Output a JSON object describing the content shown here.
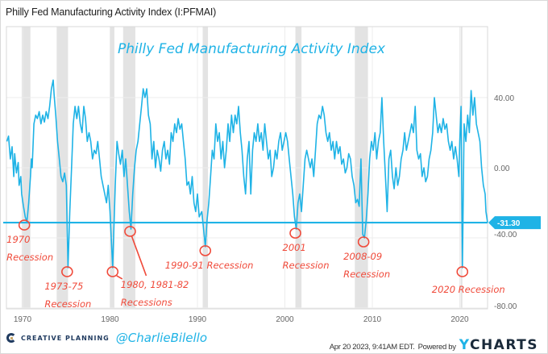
{
  "header": {
    "title": "Philly Fed Manufacturing Activity Index (I:PFMAI)"
  },
  "footer": {
    "brand": "CREATIVE PLANNING",
    "handle": "@CharlieBilello",
    "timestamp": "Apr 20 2023, 9:41AM EDT.",
    "powered_by": "Powered by",
    "ycharts_y": "Y",
    "ycharts_rest": "CHARTS"
  },
  "colors": {
    "series": "#1fb3e6",
    "annotation": "#f04a3a",
    "recession_band": "#e3e3e3",
    "grid": "#ececec"
  },
  "chart_data": {
    "type": "line",
    "title": "Philly Fed Manufacturing Activity Index",
    "xlabel": "",
    "ylabel": "",
    "xlim": [
      1968.2,
      2023.3
    ],
    "ylim": [
      -80,
      60
    ],
    "grid": true,
    "y_ticks": [
      {
        "value": 40,
        "label": "40.00"
      },
      {
        "value": 0,
        "label": "0.00"
      },
      {
        "value": -40,
        "label": "-40.00"
      },
      {
        "value": -80,
        "label": "-80.00"
      }
    ],
    "x_ticks": [
      {
        "value": 1970,
        "label": "1970"
      },
      {
        "value": 1980,
        "label": "1980"
      },
      {
        "value": 1990,
        "label": "1990"
      },
      {
        "value": 2000,
        "label": "2000"
      },
      {
        "value": 2010,
        "label": "2010"
      },
      {
        "value": 2020,
        "label": "2020"
      }
    ],
    "last_value": {
      "value": -31.3,
      "label": "-31.30"
    },
    "reference_line": -31.3,
    "recessions": [
      {
        "start": 1969.9,
        "end": 1970.9
      },
      {
        "start": 1973.9,
        "end": 1975.2
      },
      {
        "start": 1980.0,
        "end": 1980.5
      },
      {
        "start": 1981.5,
        "end": 1982.9
      },
      {
        "start": 1990.6,
        "end": 1991.2
      },
      {
        "start": 2001.2,
        "end": 2001.9
      },
      {
        "start": 2008.0,
        "end": 2009.5
      },
      {
        "start": 2020.1,
        "end": 2020.3
      }
    ],
    "series": [
      {
        "name": "Philly Fed Manufacturing Activity Index",
        "points": [
          [
            1968.2,
            15
          ],
          [
            1968.4,
            18
          ],
          [
            1968.6,
            5
          ],
          [
            1968.8,
            12
          ],
          [
            1969.0,
            -5
          ],
          [
            1969.1,
            8
          ],
          [
            1969.3,
            -3
          ],
          [
            1969.5,
            3
          ],
          [
            1969.6,
            -10
          ],
          [
            1969.8,
            -5
          ],
          [
            1969.9,
            -15
          ],
          [
            1970.1,
            -22
          ],
          [
            1970.3,
            -28
          ],
          [
            1970.5,
            -31
          ],
          [
            1970.7,
            -20
          ],
          [
            1970.9,
            -5
          ],
          [
            1971.0,
            5
          ],
          [
            1971.1,
            0
          ],
          [
            1971.3,
            25
          ],
          [
            1971.5,
            30
          ],
          [
            1971.7,
            28
          ],
          [
            1971.9,
            32
          ],
          [
            1972.1,
            25
          ],
          [
            1972.3,
            30
          ],
          [
            1972.5,
            26
          ],
          [
            1972.7,
            32
          ],
          [
            1972.9,
            28
          ],
          [
            1973.1,
            35
          ],
          [
            1973.3,
            45
          ],
          [
            1973.5,
            50
          ],
          [
            1973.6,
            42
          ],
          [
            1973.8,
            30
          ],
          [
            1974.0,
            15
          ],
          [
            1974.2,
            5
          ],
          [
            1974.4,
            -5
          ],
          [
            1974.6,
            -8
          ],
          [
            1974.8,
            -3
          ],
          [
            1975.0,
            -10
          ],
          [
            1975.2,
            -57
          ],
          [
            1975.4,
            -25
          ],
          [
            1975.6,
            0
          ],
          [
            1975.8,
            25
          ],
          [
            1976.0,
            35
          ],
          [
            1976.2,
            28
          ],
          [
            1976.4,
            35
          ],
          [
            1976.6,
            25
          ],
          [
            1976.8,
            20
          ],
          [
            1977.0,
            35
          ],
          [
            1977.2,
            28
          ],
          [
            1977.4,
            15
          ],
          [
            1977.6,
            20
          ],
          [
            1977.8,
            15
          ],
          [
            1978.0,
            5
          ],
          [
            1978.2,
            10
          ],
          [
            1978.4,
            8
          ],
          [
            1978.6,
            15
          ],
          [
            1978.8,
            5
          ],
          [
            1979.0,
            -5
          ],
          [
            1979.2,
            -10
          ],
          [
            1979.4,
            -15
          ],
          [
            1979.6,
            -20
          ],
          [
            1979.8,
            -10
          ],
          [
            1980.0,
            -25
          ],
          [
            1980.3,
            -57
          ],
          [
            1980.6,
            -10
          ],
          [
            1980.8,
            15
          ],
          [
            1981.0,
            8
          ],
          [
            1981.2,
            2
          ],
          [
            1981.4,
            10
          ],
          [
            1981.6,
            -5
          ],
          [
            1981.8,
            5
          ],
          [
            1982.0,
            -10
          ],
          [
            1982.2,
            -25
          ],
          [
            1982.4,
            -35
          ],
          [
            1982.6,
            -15
          ],
          [
            1982.8,
            0
          ],
          [
            1983.0,
            10
          ],
          [
            1983.2,
            15
          ],
          [
            1983.4,
            25
          ],
          [
            1983.6,
            35
          ],
          [
            1983.8,
            45
          ],
          [
            1984.0,
            40
          ],
          [
            1984.2,
            45
          ],
          [
            1984.4,
            30
          ],
          [
            1984.6,
            25
          ],
          [
            1984.8,
            5
          ],
          [
            1985.0,
            15
          ],
          [
            1985.2,
            0
          ],
          [
            1985.4,
            10
          ],
          [
            1985.6,
            5
          ],
          [
            1985.8,
            -2
          ],
          [
            1986.0,
            10
          ],
          [
            1986.2,
            15
          ],
          [
            1986.4,
            5
          ],
          [
            1986.6,
            10
          ],
          [
            1986.8,
            2
          ],
          [
            1987.0,
            20
          ],
          [
            1987.2,
            15
          ],
          [
            1987.4,
            25
          ],
          [
            1987.6,
            20
          ],
          [
            1987.8,
            28
          ],
          [
            1988.0,
            22
          ],
          [
            1988.2,
            25
          ],
          [
            1988.4,
            15
          ],
          [
            1988.6,
            5
          ],
          [
            1988.8,
            -10
          ],
          [
            1989.0,
            -8
          ],
          [
            1989.2,
            -15
          ],
          [
            1989.4,
            -5
          ],
          [
            1989.6,
            -20
          ],
          [
            1989.8,
            -25
          ],
          [
            1990.0,
            -15
          ],
          [
            1990.2,
            -28
          ],
          [
            1990.5,
            -25
          ],
          [
            1990.7,
            -35
          ],
          [
            1990.9,
            -45
          ],
          [
            1991.1,
            -30
          ],
          [
            1991.3,
            -20
          ],
          [
            1991.5,
            -5
          ],
          [
            1991.7,
            10
          ],
          [
            1991.9,
            5
          ],
          [
            1992.1,
            25
          ],
          [
            1992.3,
            15
          ],
          [
            1992.5,
            20
          ],
          [
            1992.7,
            5
          ],
          [
            1992.9,
            15
          ],
          [
            1993.1,
            0
          ],
          [
            1993.3,
            10
          ],
          [
            1993.5,
            25
          ],
          [
            1993.7,
            15
          ],
          [
            1993.9,
            30
          ],
          [
            1994.1,
            20
          ],
          [
            1994.3,
            30
          ],
          [
            1994.5,
            25
          ],
          [
            1994.7,
            35
          ],
          [
            1994.9,
            20
          ],
          [
            1995.1,
            10
          ],
          [
            1995.3,
            -5
          ],
          [
            1995.5,
            -15
          ],
          [
            1995.7,
            5
          ],
          [
            1995.9,
            15
          ],
          [
            1996.1,
            -15
          ],
          [
            1996.3,
            10
          ],
          [
            1996.5,
            20
          ],
          [
            1996.7,
            15
          ],
          [
            1996.9,
            25
          ],
          [
            1997.1,
            15
          ],
          [
            1997.3,
            20
          ],
          [
            1997.5,
            10
          ],
          [
            1997.7,
            25
          ],
          [
            1997.9,
            15
          ],
          [
            1998.1,
            5
          ],
          [
            1998.3,
            10
          ],
          [
            1998.5,
            -5
          ],
          [
            1998.7,
            0
          ],
          [
            1998.9,
            10
          ],
          [
            1999.1,
            5
          ],
          [
            1999.3,
            15
          ],
          [
            1999.5,
            20
          ],
          [
            1999.7,
            10
          ],
          [
            1999.9,
            15
          ],
          [
            2000.1,
            20
          ],
          [
            2000.3,
            15
          ],
          [
            2000.5,
            5
          ],
          [
            2000.7,
            -5
          ],
          [
            2000.9,
            -15
          ],
          [
            2001.1,
            -28
          ],
          [
            2001.3,
            -35
          ],
          [
            2001.5,
            -20
          ],
          [
            2001.7,
            -15
          ],
          [
            2001.9,
            -25
          ],
          [
            2002.1,
            -10
          ],
          [
            2002.3,
            5
          ],
          [
            2002.5,
            10
          ],
          [
            2002.7,
            5
          ],
          [
            2002.9,
            0
          ],
          [
            2003.1,
            5
          ],
          [
            2003.3,
            -5
          ],
          [
            2003.5,
            10
          ],
          [
            2003.7,
            25
          ],
          [
            2003.9,
            30
          ],
          [
            2004.1,
            28
          ],
          [
            2004.3,
            35
          ],
          [
            2004.5,
            30
          ],
          [
            2004.7,
            20
          ],
          [
            2004.9,
            15
          ],
          [
            2005.1,
            20
          ],
          [
            2005.3,
            10
          ],
          [
            2005.5,
            15
          ],
          [
            2005.7,
            5
          ],
          [
            2005.9,
            15
          ],
          [
            2006.1,
            8
          ],
          [
            2006.3,
            12
          ],
          [
            2006.5,
            2
          ],
          [
            2006.7,
            5
          ],
          [
            2006.9,
            -3
          ],
          [
            2007.1,
            0
          ],
          [
            2007.3,
            8
          ],
          [
            2007.5,
            5
          ],
          [
            2007.7,
            -5
          ],
          [
            2007.9,
            -10
          ],
          [
            2008.1,
            -20
          ],
          [
            2008.3,
            -18
          ],
          [
            2008.5,
            -22
          ],
          [
            2008.7,
            5
          ],
          [
            2008.9,
            -38
          ],
          [
            2009.1,
            -40
          ],
          [
            2009.3,
            -30
          ],
          [
            2009.5,
            -15
          ],
          [
            2009.7,
            5
          ],
          [
            2009.9,
            15
          ],
          [
            2010.1,
            10
          ],
          [
            2010.3,
            20
          ],
          [
            2010.5,
            5
          ],
          [
            2010.7,
            15
          ],
          [
            2010.9,
            20
          ],
          [
            2011.1,
            40
          ],
          [
            2011.3,
            15
          ],
          [
            2011.5,
            -5
          ],
          [
            2011.7,
            -25
          ],
          [
            2011.9,
            5
          ],
          [
            2012.1,
            10
          ],
          [
            2012.3,
            -5
          ],
          [
            2012.5,
            -12
          ],
          [
            2012.7,
            0
          ],
          [
            2012.9,
            -10
          ],
          [
            2013.1,
            -5
          ],
          [
            2013.3,
            5
          ],
          [
            2013.5,
            10
          ],
          [
            2013.7,
            20
          ],
          [
            2013.9,
            10
          ],
          [
            2014.1,
            15
          ],
          [
            2014.3,
            20
          ],
          [
            2014.5,
            25
          ],
          [
            2014.7,
            20
          ],
          [
            2014.9,
            35
          ],
          [
            2015.1,
            10
          ],
          [
            2015.3,
            5
          ],
          [
            2015.5,
            8
          ],
          [
            2015.7,
            -5
          ],
          [
            2015.9,
            0
          ],
          [
            2016.1,
            -8
          ],
          [
            2016.3,
            -5
          ],
          [
            2016.5,
            5
          ],
          [
            2016.7,
            10
          ],
          [
            2016.9,
            20
          ],
          [
            2017.1,
            40
          ],
          [
            2017.3,
            30
          ],
          [
            2017.5,
            20
          ],
          [
            2017.7,
            25
          ],
          [
            2017.9,
            20
          ],
          [
            2018.1,
            28
          ],
          [
            2018.3,
            22
          ],
          [
            2018.5,
            25
          ],
          [
            2018.7,
            15
          ],
          [
            2018.9,
            10
          ],
          [
            2019.1,
            15
          ],
          [
            2019.3,
            5
          ],
          [
            2019.5,
            12
          ],
          [
            2019.7,
            5
          ],
          [
            2019.9,
            -5
          ],
          [
            2020.0,
            15
          ],
          [
            2020.15,
            35
          ],
          [
            2020.3,
            -57
          ],
          [
            2020.5,
            25
          ],
          [
            2020.7,
            15
          ],
          [
            2020.9,
            30
          ],
          [
            2021.1,
            20
          ],
          [
            2021.3,
            44
          ],
          [
            2021.5,
            30
          ],
          [
            2021.7,
            40
          ],
          [
            2021.9,
            25
          ],
          [
            2022.1,
            20
          ],
          [
            2022.3,
            15
          ],
          [
            2022.5,
            0
          ],
          [
            2022.7,
            -10
          ],
          [
            2022.9,
            -15
          ],
          [
            2023.0,
            -25
          ],
          [
            2023.2,
            -31.3
          ]
        ]
      }
    ],
    "annotations": [
      {
        "x": 1970.2,
        "y": -31.3,
        "lines": [
          "1970",
          "Recession"
        ]
      },
      {
        "x": 1975.1,
        "y": -57,
        "lines": [
          "1973-75",
          "Recession"
        ]
      },
      {
        "x": 1980.3,
        "y": -57,
        "lines": [
          "1980, 1981-82",
          "Recessions"
        ]
      },
      {
        "x": 1982.3,
        "y": -34,
        "lines": []
      },
      {
        "x": 1990.9,
        "y": -45,
        "lines": [
          "1990-91 Recession"
        ]
      },
      {
        "x": 2001.2,
        "y": -35,
        "lines": [
          "2001",
          "Recession"
        ]
      },
      {
        "x": 2009.0,
        "y": -40,
        "lines": [
          "2008-09",
          "Recession"
        ]
      },
      {
        "x": 2020.3,
        "y": -57,
        "lines": [
          "2020 Recession"
        ]
      }
    ]
  }
}
